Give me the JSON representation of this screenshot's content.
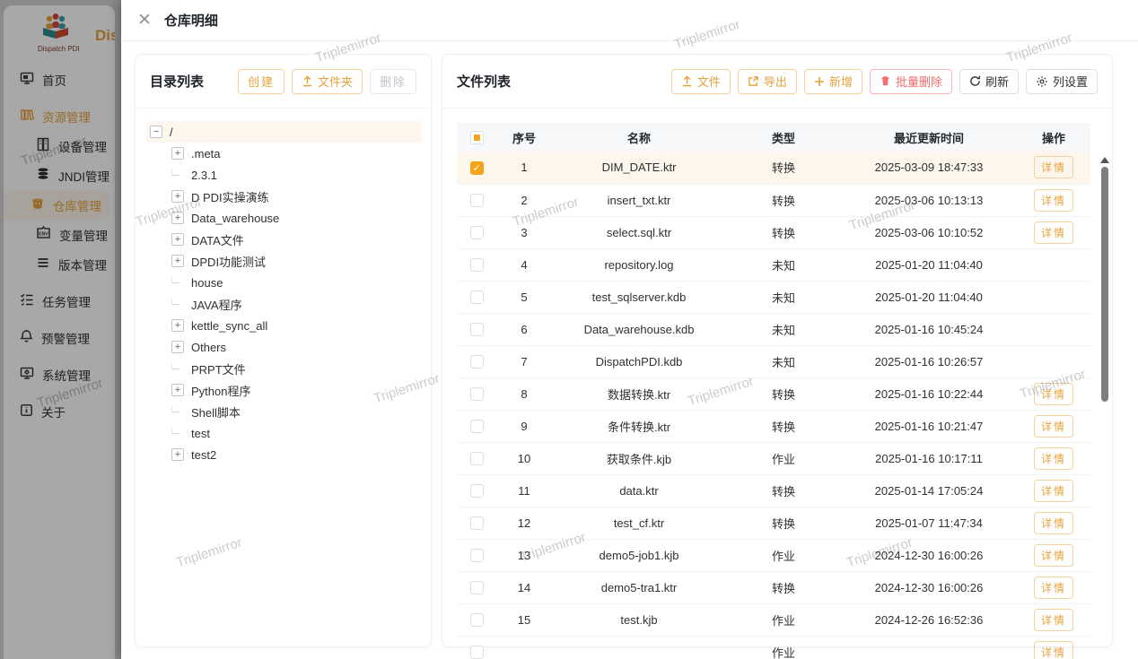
{
  "watermark": "Triplemirror",
  "colors": {
    "accent": "#e6a23c",
    "danger": "#f56c6c",
    "checkbox": "#f5a31a",
    "selected_row_bg": "#fdf6ec",
    "active_menu_bg": "#fdf6ec"
  },
  "sidebar": {
    "logo_caption": "Dispatch PDI",
    "app_title": "DispatchPDI",
    "items": [
      {
        "label": "首页",
        "icon": "home-monitor-icon",
        "level": 0
      },
      {
        "label": "资源管理",
        "icon": "books-icon",
        "level": 0,
        "accent": true
      },
      {
        "label": "设备管理",
        "icon": "server-icon",
        "level": 1
      },
      {
        "label": "JNDI管理",
        "icon": "database-icon",
        "level": 1
      },
      {
        "label": "仓库管理",
        "icon": "bucket-icon",
        "level": 1,
        "active": true
      },
      {
        "label": "变量管理",
        "icon": "env-badge-icon",
        "level": 1
      },
      {
        "label": "版本管理",
        "icon": "list-lines-icon",
        "level": 1
      },
      {
        "label": "任务管理",
        "icon": "checklist-icon",
        "level": 0
      },
      {
        "label": "预警管理",
        "icon": "bell-icon",
        "level": 0
      },
      {
        "label": "系统管理",
        "icon": "system-gear-icon",
        "level": 0
      },
      {
        "label": "关于",
        "icon": "info-icon",
        "level": 0
      }
    ]
  },
  "drawer": {
    "title": "仓库明细",
    "close_glyph": "✕"
  },
  "directory_panel": {
    "title": "目录列表",
    "buttons": {
      "create": "创建",
      "upload_folder": "文件夹",
      "delete": "删除"
    },
    "tree": [
      {
        "label": "/",
        "state": "expanded",
        "selected": true,
        "depth": 0
      },
      {
        "label": ".meta",
        "state": "collapsed",
        "depth": 1
      },
      {
        "label": "2.3.1",
        "state": "leaf",
        "depth": 1
      },
      {
        "label": "D PDI实操演练",
        "state": "collapsed",
        "depth": 1
      },
      {
        "label": "Data_warehouse",
        "state": "collapsed",
        "depth": 1
      },
      {
        "label": "DATA文件",
        "state": "collapsed",
        "depth": 1
      },
      {
        "label": "DPDI功能测试",
        "state": "collapsed",
        "depth": 1
      },
      {
        "label": "house",
        "state": "leaf",
        "depth": 1
      },
      {
        "label": "JAVA程序",
        "state": "leaf",
        "depth": 1
      },
      {
        "label": "kettle_sync_all",
        "state": "collapsed",
        "depth": 1
      },
      {
        "label": "Others",
        "state": "collapsed",
        "depth": 1
      },
      {
        "label": "PRPT文件",
        "state": "leaf",
        "depth": 1
      },
      {
        "label": "Python程序",
        "state": "collapsed",
        "depth": 1
      },
      {
        "label": "Shell脚本",
        "state": "leaf",
        "depth": 1
      },
      {
        "label": "test",
        "state": "leaf",
        "depth": 1
      },
      {
        "label": "test2",
        "state": "collapsed",
        "depth": 1
      }
    ]
  },
  "file_panel": {
    "title": "文件列表",
    "buttons": {
      "upload": "文件",
      "export": "导出",
      "add": "新增",
      "batch_delete": "批量删除",
      "refresh": "刷新",
      "column_settings": "列设置"
    },
    "table": {
      "headers": {
        "no": "序号",
        "name": "名称",
        "type": "类型",
        "updated": "最近更新时间",
        "action": "操作"
      },
      "detail_label": "详情",
      "header_checkbox_state": "indeterminate",
      "rows": [
        {
          "no": "1",
          "name": "DIM_DATE.ktr",
          "type": "转换",
          "updated": "2025-03-09 18:47:33",
          "checked": true,
          "selected": true,
          "action": true
        },
        {
          "no": "2",
          "name": "insert_txt.ktr",
          "type": "转换",
          "updated": "2025-03-06 10:13:13",
          "checked": false,
          "action": true
        },
        {
          "no": "3",
          "name": "select.sql.ktr",
          "type": "转换",
          "updated": "2025-03-06 10:10:52",
          "checked": false,
          "action": true
        },
        {
          "no": "4",
          "name": "repository.log",
          "type": "未知",
          "updated": "2025-01-20 11:04:40",
          "checked": false,
          "action": false
        },
        {
          "no": "5",
          "name": "test_sqlserver.kdb",
          "type": "未知",
          "updated": "2025-01-20 11:04:40",
          "checked": false,
          "action": false
        },
        {
          "no": "6",
          "name": "Data_warehouse.kdb",
          "type": "未知",
          "updated": "2025-01-16 10:45:24",
          "checked": false,
          "action": false
        },
        {
          "no": "7",
          "name": "DispatchPDI.kdb",
          "type": "未知",
          "updated": "2025-01-16 10:26:57",
          "checked": false,
          "action": false
        },
        {
          "no": "8",
          "name": "数据转换.ktr",
          "type": "转换",
          "updated": "2025-01-16 10:22:44",
          "checked": false,
          "action": true
        },
        {
          "no": "9",
          "name": "条件转换.ktr",
          "type": "转换",
          "updated": "2025-01-16 10:21:47",
          "checked": false,
          "action": true
        },
        {
          "no": "10",
          "name": "获取条件.kjb",
          "type": "作业",
          "updated": "2025-01-16 10:17:11",
          "checked": false,
          "action": true
        },
        {
          "no": "11",
          "name": "data.ktr",
          "type": "转换",
          "updated": "2025-01-14 17:05:24",
          "checked": false,
          "action": true
        },
        {
          "no": "12",
          "name": "test_cf.ktr",
          "type": "转换",
          "updated": "2025-01-07 11:47:34",
          "checked": false,
          "action": true
        },
        {
          "no": "13",
          "name": "demo5-job1.kjb",
          "type": "作业",
          "updated": "2024-12-30 16:00:26",
          "checked": false,
          "action": true
        },
        {
          "no": "14",
          "name": "demo5-tra1.ktr",
          "type": "转换",
          "updated": "2024-12-30 16:00:26",
          "checked": false,
          "action": true
        },
        {
          "no": "15",
          "name": "test.kjb",
          "type": "作业",
          "updated": "2024-12-26 16:52:36",
          "checked": false,
          "action": true
        },
        {
          "no": "",
          "name": "",
          "type": "作业",
          "updated": "",
          "checked": false,
          "action": true,
          "partial": true
        }
      ]
    }
  }
}
